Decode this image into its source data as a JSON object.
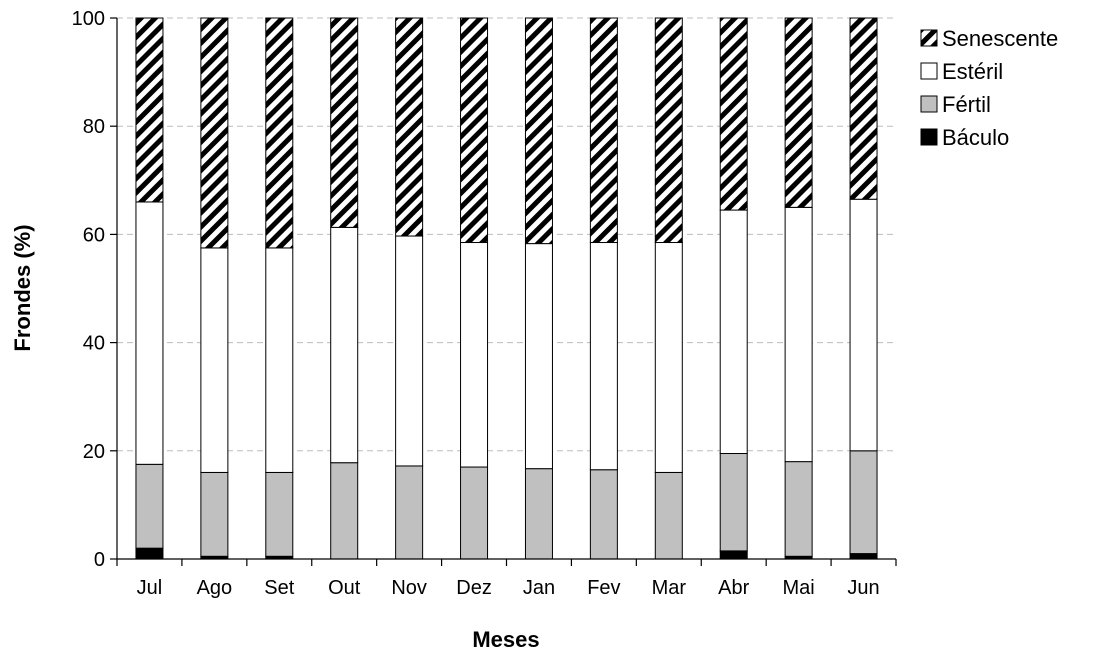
{
  "chart_data": {
    "type": "bar",
    "stacked": true,
    "xlabel": "Meses",
    "ylabel": "Frondes (%)",
    "ylim": [
      0,
      100
    ],
    "yticks": [
      0,
      20,
      40,
      60,
      80,
      100
    ],
    "grid": "horizontal dashed",
    "legend_position": "top-right",
    "categories": [
      "Jul",
      "Ago",
      "Set",
      "Out",
      "Nov",
      "Dez",
      "Jan",
      "Fev",
      "Mar",
      "Abr",
      "Mai",
      "Jun"
    ],
    "series": [
      {
        "name": "Báculo",
        "pattern": "solid",
        "color": "#000000",
        "values": [
          2.0,
          0.5,
          0.5,
          0.0,
          0.0,
          0.0,
          0.0,
          0.0,
          0.0,
          1.5,
          0.5,
          1.0
        ]
      },
      {
        "name": "Fértil",
        "pattern": "solid",
        "color": "#c0c0c0",
        "values": [
          15.5,
          15.5,
          15.5,
          17.8,
          17.2,
          17.0,
          16.7,
          16.5,
          16.0,
          18.0,
          17.5,
          19.0
        ]
      },
      {
        "name": "Estéril",
        "pattern": "solid",
        "color": "#ffffff",
        "values": [
          48.5,
          41.5,
          41.5,
          43.5,
          42.5,
          41.5,
          41.6,
          42.0,
          42.5,
          45.0,
          47.0,
          46.5
        ]
      },
      {
        "name": "Senescente",
        "pattern": "diagonal-hatch",
        "color": "#000000",
        "values": [
          34.0,
          42.5,
          42.5,
          38.7,
          40.3,
          41.5,
          41.7,
          41.5,
          41.5,
          35.5,
          35.0,
          33.5
        ]
      }
    ],
    "legend_order": [
      "Senescente",
      "Estéril",
      "Fértil",
      "Báculo"
    ]
  }
}
